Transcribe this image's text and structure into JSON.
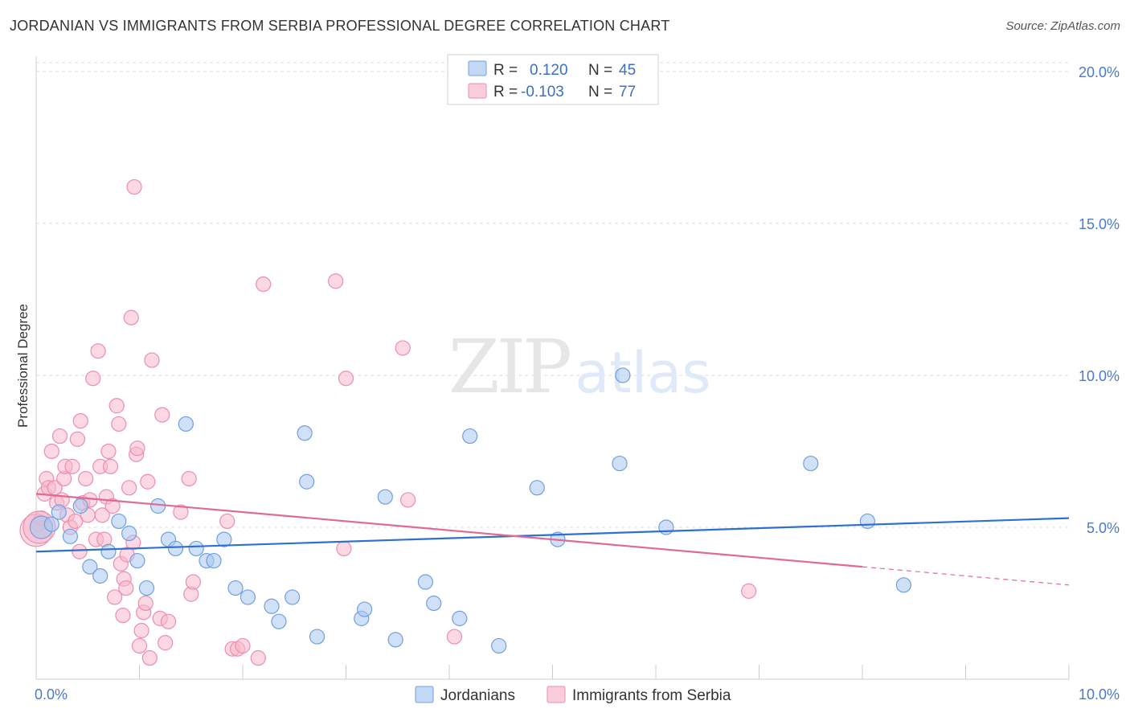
{
  "header": {
    "title": "JORDANIAN VS IMMIGRANTS FROM SERBIA PROFESSIONAL DEGREE CORRELATION CHART",
    "source": "Source: ZipAtlas.com"
  },
  "watermark": {
    "zip": "ZIP",
    "atlas": "atlas"
  },
  "colors": {
    "jordanians_fill": "#aac8f0",
    "jordanians_stroke": "#6f9fe0",
    "jordanians_line": "#2f6fd0",
    "serbia_fill": "#f7b8cc",
    "serbia_stroke": "#ec8eac",
    "serbia_line": "#e06a94",
    "grid": "#dddddd",
    "tick_label": "#4a7ac8"
  },
  "legend": {
    "items": [
      {
        "r_label": "R =",
        "r_value": "0.120",
        "n_label": "N =",
        "n_value": "45"
      },
      {
        "r_label": "R =",
        "r_value": "-0.103",
        "n_label": "N =",
        "n_value": "77"
      }
    ]
  },
  "chart_data": {
    "type": "scatter",
    "title": "JORDANIAN VS IMMIGRANTS FROM SERBIA PROFESSIONAL DEGREE CORRELATION CHART",
    "xlabel": "",
    "ylabel": "Professional Degree",
    "xlim": [
      0,
      10
    ],
    "ylim": [
      0,
      20.5
    ],
    "x_tick_labels": [
      "0.0%",
      "10.0%"
    ],
    "y_ticks": [
      5,
      10,
      15,
      20
    ],
    "y_tick_labels": [
      "5.0%",
      "10.0%",
      "15.0%",
      "20.0%"
    ],
    "grid": true,
    "legend_position": "top-center",
    "series": [
      {
        "name": "Jordanians",
        "r": 0.12,
        "n": 45,
        "trend": {
          "x": [
            0,
            10
          ],
          "y": [
            4.2,
            5.3
          ]
        },
        "points": [
          [
            0.05,
            5.0
          ],
          [
            0.15,
            5.1
          ],
          [
            0.22,
            5.5
          ],
          [
            0.33,
            4.7
          ],
          [
            0.43,
            5.7
          ],
          [
            0.52,
            3.7
          ],
          [
            0.62,
            3.4
          ],
          [
            0.7,
            4.2
          ],
          [
            0.8,
            5.2
          ],
          [
            0.9,
            4.8
          ],
          [
            0.98,
            3.9
          ],
          [
            1.07,
            3.0
          ],
          [
            1.18,
            5.7
          ],
          [
            1.28,
            4.6
          ],
          [
            1.35,
            4.3
          ],
          [
            1.45,
            8.4
          ],
          [
            1.55,
            4.3
          ],
          [
            1.65,
            3.9
          ],
          [
            1.72,
            3.9
          ],
          [
            1.82,
            4.6
          ],
          [
            1.93,
            3.0
          ],
          [
            2.05,
            2.7
          ],
          [
            2.28,
            2.4
          ],
          [
            2.35,
            1.9
          ],
          [
            2.48,
            2.7
          ],
          [
            2.6,
            8.1
          ],
          [
            2.62,
            6.5
          ],
          [
            2.72,
            1.4
          ],
          [
            3.15,
            2.0
          ],
          [
            3.18,
            2.3
          ],
          [
            3.38,
            6.0
          ],
          [
            3.48,
            1.3
          ],
          [
            3.77,
            3.2
          ],
          [
            3.85,
            2.5
          ],
          [
            4.1,
            2.0
          ],
          [
            4.2,
            8.0
          ],
          [
            4.48,
            1.1
          ],
          [
            4.85,
            6.3
          ],
          [
            5.05,
            4.6
          ],
          [
            5.65,
            7.1
          ],
          [
            5.68,
            10.0
          ],
          [
            6.1,
            5.0
          ],
          [
            7.5,
            7.1
          ],
          [
            8.05,
            5.2
          ],
          [
            8.4,
            3.1
          ]
        ]
      },
      {
        "name": "Immigrants from Serbia",
        "r": -0.103,
        "n": 77,
        "trend": {
          "x": [
            0,
            8.0
          ],
          "y": [
            6.1,
            3.7
          ]
        },
        "trend_dashed": {
          "x": [
            8.0,
            10
          ],
          "y": [
            3.7,
            3.1
          ]
        },
        "points": [
          [
            0.02,
            5.1
          ],
          [
            0.05,
            5.3
          ],
          [
            0.08,
            6.1
          ],
          [
            0.1,
            6.6
          ],
          [
            0.12,
            6.3
          ],
          [
            0.15,
            7.5
          ],
          [
            0.18,
            6.3
          ],
          [
            0.2,
            5.8
          ],
          [
            0.23,
            8.0
          ],
          [
            0.25,
            5.9
          ],
          [
            0.27,
            6.6
          ],
          [
            0.28,
            7.0
          ],
          [
            0.3,
            5.4
          ],
          [
            0.33,
            5.0
          ],
          [
            0.35,
            7.0
          ],
          [
            0.38,
            5.2
          ],
          [
            0.4,
            7.9
          ],
          [
            0.42,
            4.2
          ],
          [
            0.43,
            8.5
          ],
          [
            0.45,
            5.8
          ],
          [
            0.48,
            6.6
          ],
          [
            0.5,
            5.4
          ],
          [
            0.52,
            5.9
          ],
          [
            0.55,
            9.9
          ],
          [
            0.58,
            4.6
          ],
          [
            0.6,
            10.8
          ],
          [
            0.62,
            7.0
          ],
          [
            0.64,
            5.4
          ],
          [
            0.66,
            4.6
          ],
          [
            0.68,
            6.0
          ],
          [
            0.7,
            7.5
          ],
          [
            0.72,
            7.0
          ],
          [
            0.74,
            5.7
          ],
          [
            0.76,
            2.7
          ],
          [
            0.78,
            9.0
          ],
          [
            0.8,
            8.4
          ],
          [
            0.82,
            3.8
          ],
          [
            0.84,
            2.1
          ],
          [
            0.85,
            3.3
          ],
          [
            0.87,
            3.0
          ],
          [
            0.88,
            4.1
          ],
          [
            0.9,
            6.3
          ],
          [
            0.92,
            11.9
          ],
          [
            0.94,
            4.5
          ],
          [
            0.95,
            16.2
          ],
          [
            0.97,
            7.4
          ],
          [
            0.98,
            7.6
          ],
          [
            1.0,
            1.1
          ],
          [
            1.02,
            1.6
          ],
          [
            1.04,
            2.2
          ],
          [
            1.06,
            2.5
          ],
          [
            1.08,
            6.5
          ],
          [
            1.1,
            0.7
          ],
          [
            1.12,
            10.5
          ],
          [
            1.2,
            2.0
          ],
          [
            1.22,
            8.7
          ],
          [
            1.25,
            1.2
          ],
          [
            1.28,
            1.9
          ],
          [
            1.4,
            5.5
          ],
          [
            1.48,
            6.6
          ],
          [
            1.5,
            2.8
          ],
          [
            1.52,
            3.2
          ],
          [
            1.85,
            5.2
          ],
          [
            1.9,
            1.0
          ],
          [
            1.95,
            1.0
          ],
          [
            2.0,
            1.1
          ],
          [
            2.15,
            0.7
          ],
          [
            2.2,
            13.0
          ],
          [
            2.9,
            13.1
          ],
          [
            2.98,
            4.3
          ],
          [
            3.0,
            9.9
          ],
          [
            3.55,
            10.9
          ],
          [
            3.6,
            5.9
          ],
          [
            4.05,
            1.4
          ],
          [
            6.9,
            2.9
          ],
          [
            0.0,
            4.9
          ],
          [
            0.03,
            5.0
          ]
        ]
      }
    ]
  },
  "bottom_legend": {
    "items": [
      "Jordanians",
      "Immigrants from Serbia"
    ]
  }
}
